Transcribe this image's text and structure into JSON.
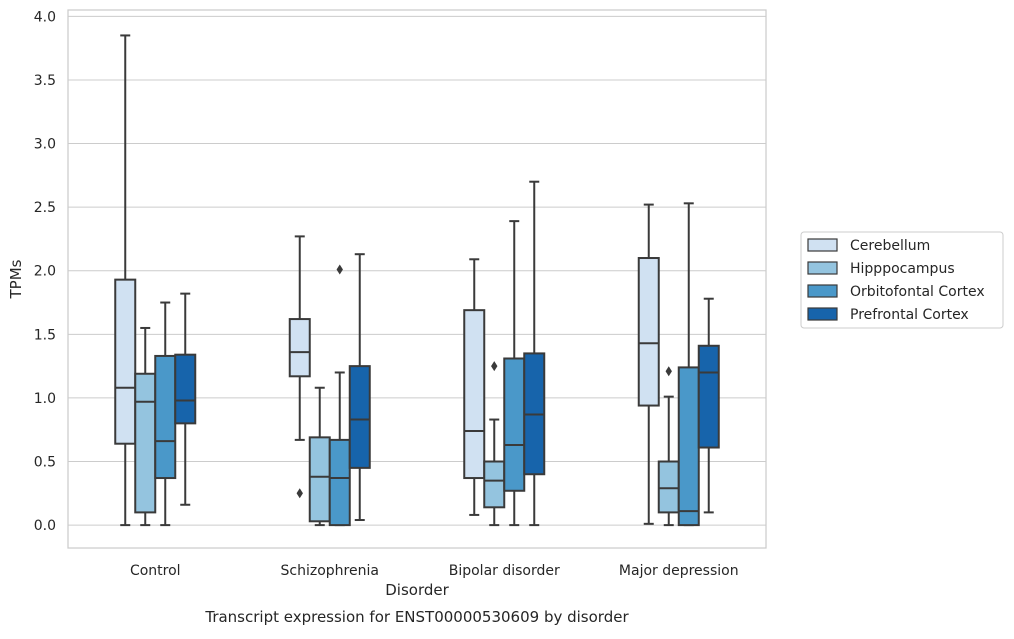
{
  "chart_data": {
    "type": "box",
    "title": "",
    "caption": "Transcript expression for ENST00000530609 by disorder",
    "xlabel": "Disorder",
    "ylabel": "TPMs",
    "ylim": [
      -0.18,
      4.05
    ],
    "yticks": [
      0.0,
      0.5,
      1.0,
      1.5,
      2.0,
      2.5,
      3.0,
      3.5,
      4.0
    ],
    "ytick_labels": [
      "0.0",
      "0.5",
      "1.0",
      "1.5",
      "2.0",
      "2.5",
      "3.0",
      "3.5",
      "4.0"
    ],
    "categories": [
      "Control",
      "Schizophrenia",
      "Bipolar disorder",
      "Major depression"
    ],
    "grid": "horizontal",
    "legend_position": "right",
    "series": [
      {
        "name": "Cerebellum",
        "color": "#d0e1f2",
        "boxes": [
          {
            "whisker_low": 0.0,
            "q1": 0.64,
            "median": 1.08,
            "q3": 1.93,
            "whisker_high": 3.85,
            "outliers": []
          },
          {
            "whisker_low": 0.67,
            "q1": 1.17,
            "median": 1.36,
            "q3": 1.62,
            "whisker_high": 2.27,
            "outliers": [
              0.25
            ]
          },
          {
            "whisker_low": 0.08,
            "q1": 0.37,
            "median": 0.74,
            "q3": 1.69,
            "whisker_high": 2.09,
            "outliers": []
          },
          {
            "whisker_low": 0.01,
            "q1": 0.94,
            "median": 1.43,
            "q3": 2.1,
            "whisker_high": 2.52,
            "outliers": []
          }
        ]
      },
      {
        "name": "Hipppocampus",
        "color": "#94c4df",
        "boxes": [
          {
            "whisker_low": 0.0,
            "q1": 0.1,
            "median": 0.97,
            "q3": 1.19,
            "whisker_high": 1.55,
            "outliers": []
          },
          {
            "whisker_low": 0.0,
            "q1": 0.03,
            "median": 0.38,
            "q3": 0.69,
            "whisker_high": 1.08,
            "outliers": []
          },
          {
            "whisker_low": 0.0,
            "q1": 0.14,
            "median": 0.35,
            "q3": 0.5,
            "whisker_high": 0.83,
            "outliers": [
              1.25
            ]
          },
          {
            "whisker_low": 0.0,
            "q1": 0.1,
            "median": 0.29,
            "q3": 0.5,
            "whisker_high": 1.01,
            "outliers": [
              1.21
            ]
          }
        ]
      },
      {
        "name": "Orbitofontal Cortex",
        "color": "#4a98c9",
        "boxes": [
          {
            "whisker_low": 0.0,
            "q1": 0.37,
            "median": 0.66,
            "q3": 1.33,
            "whisker_high": 1.75,
            "outliers": []
          },
          {
            "whisker_low": 0.0,
            "q1": 0.0,
            "median": 0.37,
            "q3": 0.67,
            "whisker_high": 1.2,
            "outliers": [
              2.01
            ]
          },
          {
            "whisker_low": 0.0,
            "q1": 0.27,
            "median": 0.63,
            "q3": 1.31,
            "whisker_high": 2.39,
            "outliers": []
          },
          {
            "whisker_low": 0.0,
            "q1": 0.0,
            "median": 0.11,
            "q3": 1.24,
            "whisker_high": 2.53,
            "outliers": []
          }
        ]
      },
      {
        "name": "Prefrontal Cortex",
        "color": "#1764ab",
        "boxes": [
          {
            "whisker_low": 0.16,
            "q1": 0.8,
            "median": 0.98,
            "q3": 1.34,
            "whisker_high": 1.82,
            "outliers": []
          },
          {
            "whisker_low": 0.04,
            "q1": 0.45,
            "median": 0.83,
            "q3": 1.25,
            "whisker_high": 2.13,
            "outliers": []
          },
          {
            "whisker_low": 0.0,
            "q1": 0.4,
            "median": 0.87,
            "q3": 1.35,
            "whisker_high": 2.7,
            "outliers": []
          },
          {
            "whisker_low": 0.1,
            "q1": 0.61,
            "median": 1.2,
            "q3": 1.41,
            "whisker_high": 1.78,
            "outliers": []
          }
        ]
      }
    ]
  }
}
